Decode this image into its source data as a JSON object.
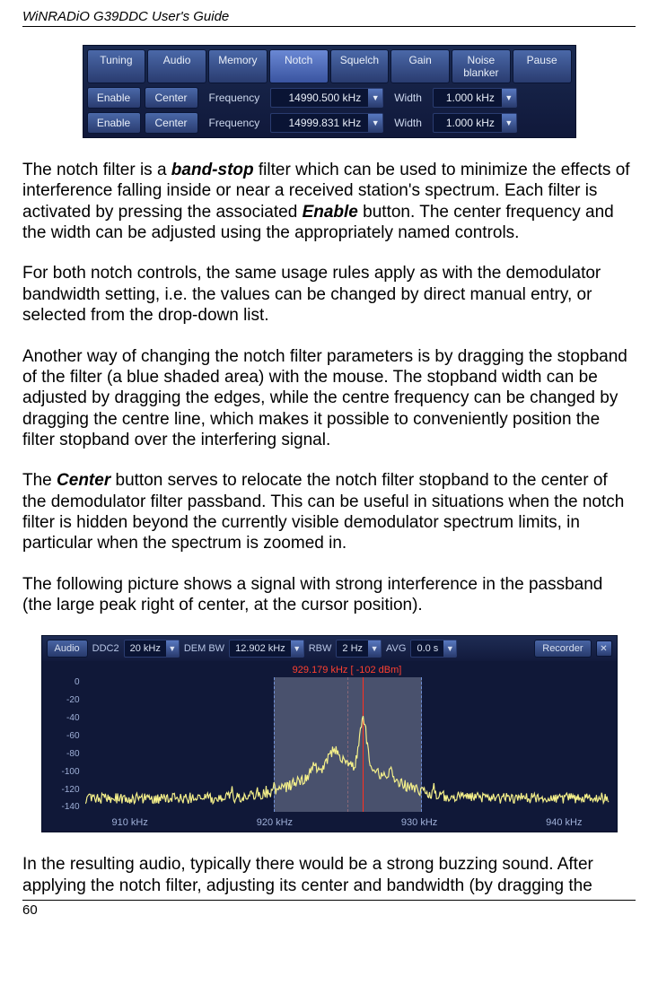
{
  "header": "WiNRADiO G39DDC User's Guide",
  "pageNumber": "60",
  "notchPanel": {
    "tabs": [
      "Tuning",
      "Audio",
      "Memory",
      "Notch",
      "Squelch",
      "Gain",
      "Noise blanker",
      "Pause"
    ],
    "activeTab": "Notch",
    "rows": [
      {
        "enable": "Enable",
        "center": "Center",
        "freqLabel": "Frequency",
        "freq": "14990.500 kHz",
        "widthLabel": "Width",
        "width": "1.000 kHz"
      },
      {
        "enable": "Enable",
        "center": "Center",
        "freqLabel": "Frequency",
        "freq": "14999.831 kHz",
        "widthLabel": "Width",
        "width": "1.000 kHz"
      }
    ]
  },
  "text": {
    "p1a": "The notch filter is a ",
    "p1b": "band-stop",
    "p1c": " filter which can be used to minimize the effects of interference falling inside or near a received station's spectrum. Each filter is activated by pressing the associated ",
    "p1d": "Enable",
    "p1e": " button. The center frequency and the width can be adjusted using the appropriately named controls.",
    "p2": "For both notch controls, the same usage rules apply as with the demodulator bandwidth setting, i.e. the values can be changed by direct manual entry, or selected from the drop-down list.",
    "p3": "Another way of changing the notch filter parameters is by dragging the stopband of the filter (a blue shaded area) with the mouse.  The stopband width can be adjusted by dragging the edges, while the centre frequency can be changed by dragging the centre line, which makes it possible to conveniently position the filter stopband over the interfering signal.",
    "p4a": "The ",
    "p4b": "Center",
    "p4c": " button serves to relocate the notch filter stopband to the center of the demodulator filter passband. This can be useful in situations when the notch filter is hidden beyond the currently visible demodulator spectrum limits, in particular when the spectrum is zoomed in.",
    "p5": "The following picture shows a signal with strong interference in the passband (the large peak right of center, at the cursor position).",
    "p6": "In the resulting audio, typically there would be a strong buzzing sound. After applying the notch filter, adjusting its center and bandwidth (by dragging the"
  },
  "specPanel": {
    "audio": "Audio",
    "ddc2": "DDC2",
    "ddc2val": "20 kHz",
    "dembw": "DEM BW",
    "dembwval": "12.902 kHz",
    "rbw": "RBW",
    "rbwval": "2 Hz",
    "avg": "AVG",
    "avgval": "0.0 s",
    "recorder": "Recorder",
    "cursor": "929.179 kHz [ -102 dBm]",
    "yticks": [
      "0",
      "-20",
      "-40",
      "-60",
      "-80",
      "-100",
      "-120",
      "-140"
    ],
    "xticks": [
      "910 kHz",
      "920 kHz",
      "930 kHz",
      "940 kHz"
    ],
    "traceColor": "#f5f08a",
    "passbandColor": "rgba(180,190,210,0.35)"
  }
}
